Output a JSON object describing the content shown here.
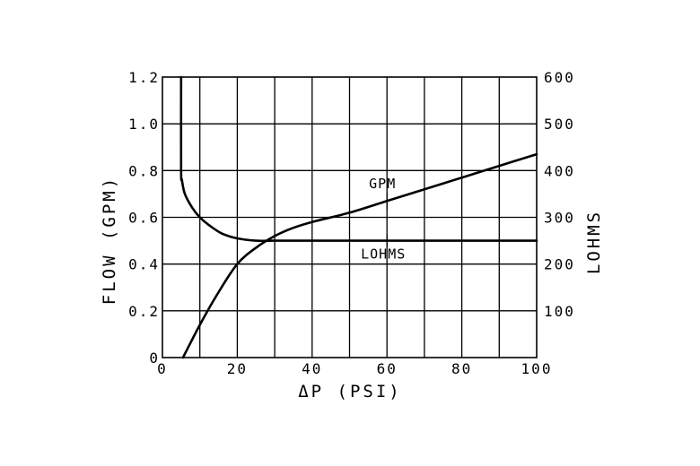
{
  "chart_data": {
    "type": "line",
    "title": "",
    "xlabel": "ΔP (PSI)",
    "ylabel": "FLOW (GPM)",
    "y2label": "LOHMS",
    "xlim": [
      0,
      100
    ],
    "ylim": [
      0,
      1.2
    ],
    "y2lim": [
      0,
      600
    ],
    "grid": true,
    "x_ticks": [
      "0",
      "20",
      "40",
      "60",
      "80",
      "100"
    ],
    "y_ticks": [
      "0",
      "0.2",
      "0.4",
      "0.6",
      "0.8",
      "1.0",
      "1.2"
    ],
    "y2_ticks": [
      "100",
      "200",
      "300",
      "400",
      "500",
      "600"
    ],
    "series": [
      {
        "name": "GPM",
        "axis": "left",
        "x": [
          5.5,
          10,
          15,
          20,
          25,
          30,
          35,
          40,
          50,
          60,
          70,
          80,
          90,
          100
        ],
        "y": [
          0.0,
          0.14,
          0.28,
          0.4,
          0.47,
          0.52,
          0.555,
          0.58,
          0.62,
          0.67,
          0.72,
          0.77,
          0.82,
          0.87
        ]
      },
      {
        "name": "LOHMS",
        "axis": "right",
        "x": [
          5,
          5,
          5.2,
          6,
          8,
          10,
          13,
          16,
          20,
          25,
          30,
          40,
          60,
          80,
          100
        ],
        "y": [
          600,
          400,
          380,
          350,
          320,
          300,
          280,
          265,
          255,
          250,
          250,
          250,
          250,
          250,
          250
        ]
      }
    ],
    "annotations": [
      {
        "text": "GPM",
        "series": "GPM",
        "x": 60
      },
      {
        "text": "LOHMS",
        "series": "LOHMS",
        "x": 60
      }
    ]
  }
}
